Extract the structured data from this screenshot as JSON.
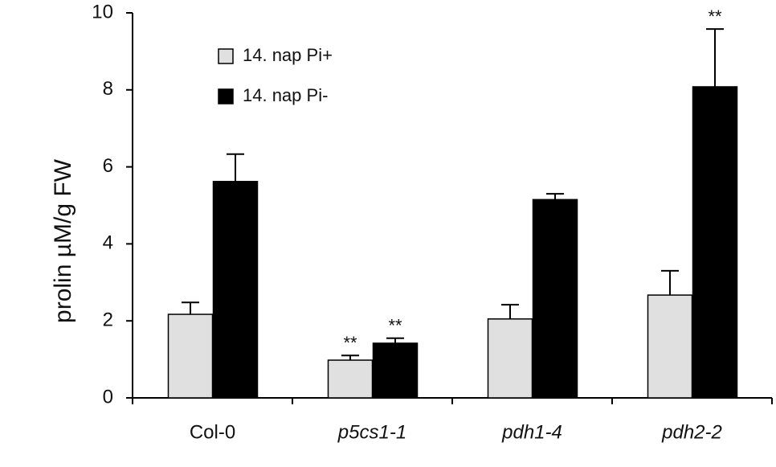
{
  "chart_data": {
    "type": "bar",
    "y_label": "prolin µM/g FW",
    "categories": [
      "Col-0",
      "p5cs1-1",
      "pdh1-4",
      "pdh2-2"
    ],
    "category_italic": [
      false,
      true,
      true,
      true
    ],
    "series": [
      {
        "name": "14. nap Pi+",
        "color": "#e0e0e0",
        "values": [
          2.17,
          0.98,
          2.05,
          2.67
        ],
        "errors": [
          0.31,
          0.12,
          0.37,
          0.63
        ],
        "annotations": [
          null,
          "**",
          null,
          null
        ]
      },
      {
        "name": "14. nap Pi-",
        "color": "#000000",
        "values": [
          5.62,
          1.42,
          5.15,
          8.08
        ],
        "errors": [
          0.71,
          0.13,
          0.15,
          1.5
        ],
        "annotations": [
          null,
          "**",
          null,
          "**"
        ]
      }
    ],
    "ylim": [
      0,
      10
    ],
    "yticks": [
      0,
      2,
      4,
      6,
      8,
      10
    ],
    "grid": false,
    "legend": "upper-left"
  }
}
